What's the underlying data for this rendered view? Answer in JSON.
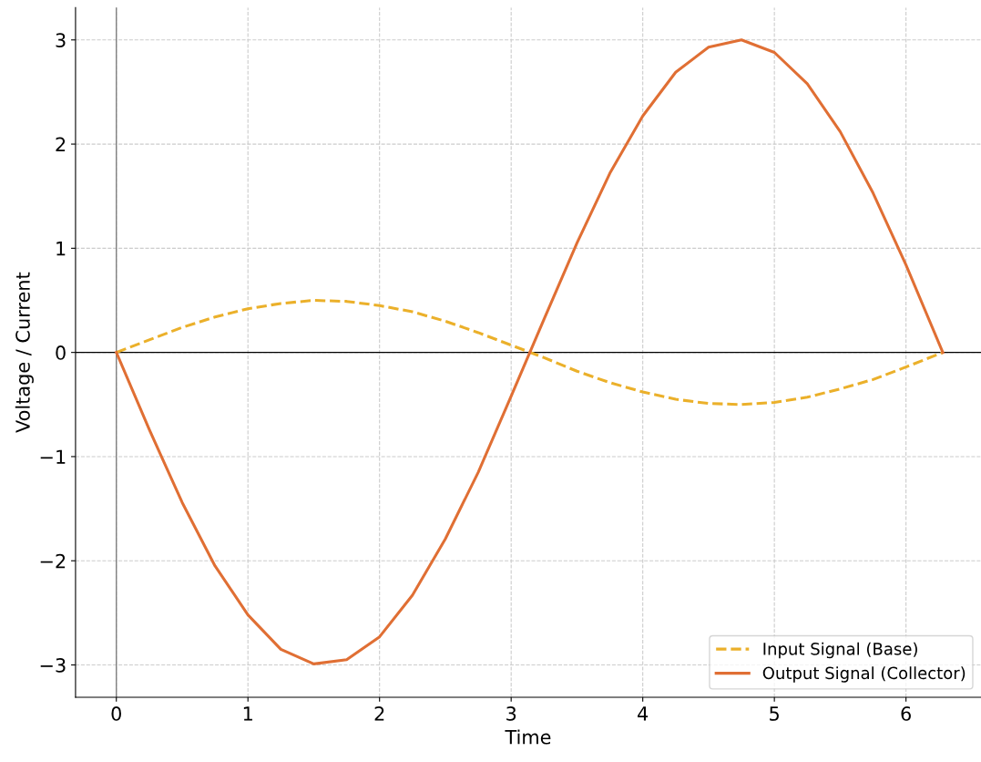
{
  "chart_data": {
    "type": "line",
    "xlabel": "Time",
    "ylabel": "Voltage / Current",
    "x": [
      0,
      0.25,
      0.5,
      0.75,
      1,
      1.25,
      1.5,
      1.75,
      2,
      2.25,
      2.5,
      2.75,
      3,
      3.25,
      3.5,
      3.75,
      4,
      4.25,
      4.5,
      4.75,
      5,
      5.25,
      5.5,
      5.75,
      6,
      6.28
    ],
    "series": [
      {
        "name": "Input Signal (Base)",
        "color": "#ebb02a",
        "line_style": "dashed",
        "values": [
          0,
          0.12,
          0.24,
          0.34,
          0.42,
          0.47,
          0.5,
          0.49,
          0.45,
          0.39,
          0.3,
          0.19,
          0.07,
          -0.05,
          -0.18,
          -0.29,
          -0.38,
          -0.45,
          -0.49,
          -0.5,
          -0.48,
          -0.43,
          -0.35,
          -0.26,
          -0.14,
          0
        ]
      },
      {
        "name": "Output Signal (Collector)",
        "color": "#e06f34",
        "line_style": "solid",
        "values": [
          0,
          -0.74,
          -1.44,
          -2.05,
          -2.52,
          -2.85,
          -2.99,
          -2.95,
          -2.73,
          -2.33,
          -1.79,
          -1.15,
          -0.42,
          0.32,
          1.05,
          1.72,
          2.27,
          2.69,
          2.93,
          3.0,
          2.88,
          2.58,
          2.12,
          1.53,
          0.84,
          0
        ]
      }
    ],
    "xlim": [
      -0.31,
      6.57
    ],
    "ylim": [
      -3.31,
      3.31
    ],
    "xticks": [
      0,
      1,
      2,
      3,
      4,
      5,
      6
    ],
    "yticks": [
      {
        "value": -3,
        "label": "−3"
      },
      {
        "value": -2,
        "label": "−2"
      },
      {
        "value": -1,
        "label": "−1"
      },
      0,
      1,
      2,
      3
    ],
    "ref_lines": [
      {
        "axis": "y",
        "value": 0,
        "color": "#000000"
      },
      {
        "axis": "x",
        "value": 0,
        "color": "#808080"
      }
    ],
    "grid": true,
    "legend": "bottom right",
    "marker": "none"
  }
}
